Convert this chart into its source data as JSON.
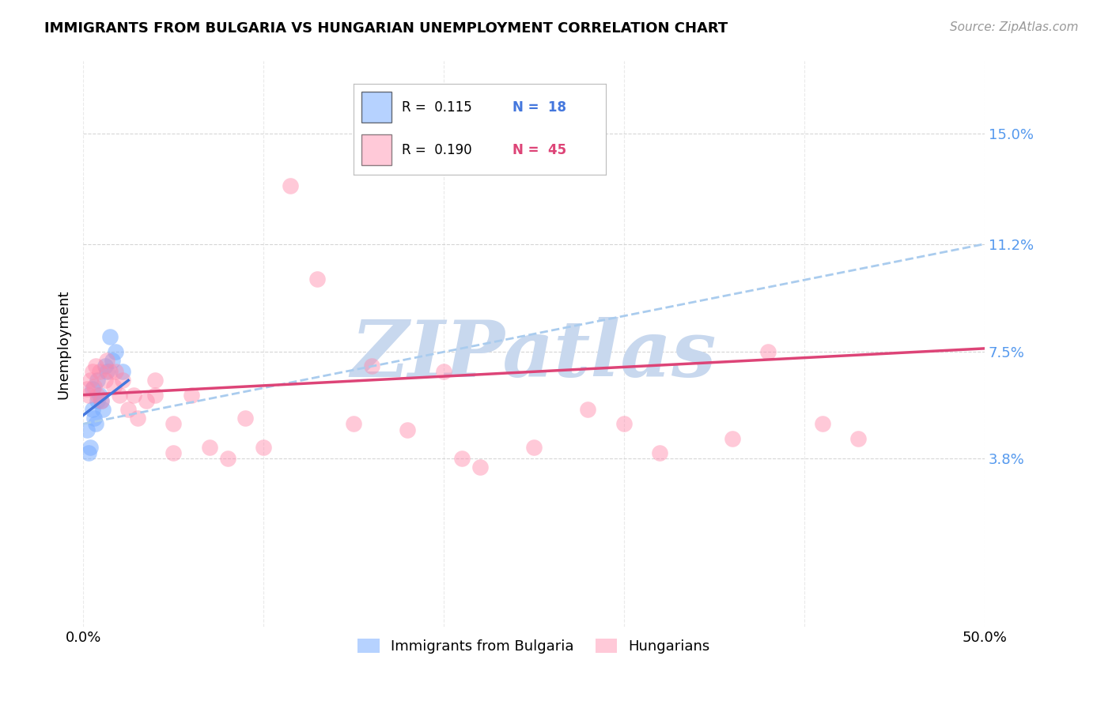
{
  "title": "IMMIGRANTS FROM BULGARIA VS HUNGARIAN UNEMPLOYMENT CORRELATION CHART",
  "source": "Source: ZipAtlas.com",
  "ylabel": "Unemployment",
  "xlim": [
    0.0,
    0.5
  ],
  "ylim": [
    -0.02,
    0.175
  ],
  "yticks": [
    0.038,
    0.075,
    0.112,
    0.15
  ],
  "ytick_labels": [
    "3.8%",
    "7.5%",
    "11.2%",
    "15.0%"
  ],
  "xticks": [
    0.0,
    0.1,
    0.2,
    0.3,
    0.4,
    0.5
  ],
  "xtick_labels": [
    "0.0%",
    "",
    "",
    "",
    "",
    "50.0%"
  ],
  "bg_color": "#ffffff",
  "grid_color": "#cccccc",
  "blue_color": "#7aadff",
  "pink_color": "#ff88aa",
  "blue_line_color": "#4477dd",
  "pink_line_color": "#dd4477",
  "dashed_line_color": "#aaccee",
  "watermark_text": "ZIPatlas",
  "watermark_color": "#c8d8ee",
  "blue_scatter_x": [
    0.002,
    0.003,
    0.004,
    0.005,
    0.005,
    0.006,
    0.007,
    0.008,
    0.008,
    0.009,
    0.01,
    0.011,
    0.012,
    0.013,
    0.015,
    0.016,
    0.018,
    0.022
  ],
  "blue_scatter_y": [
    0.048,
    0.04,
    0.042,
    0.055,
    0.062,
    0.052,
    0.05,
    0.058,
    0.065,
    0.06,
    0.058,
    0.055,
    0.07,
    0.068,
    0.08,
    0.072,
    0.075,
    0.068
  ],
  "pink_scatter_x": [
    0.002,
    0.003,
    0.004,
    0.005,
    0.006,
    0.007,
    0.008,
    0.009,
    0.01,
    0.012,
    0.013,
    0.015,
    0.017,
    0.018,
    0.02,
    0.022,
    0.025,
    0.028,
    0.03,
    0.035,
    0.04,
    0.04,
    0.05,
    0.05,
    0.06,
    0.07,
    0.08,
    0.09,
    0.1,
    0.115,
    0.13,
    0.15,
    0.16,
    0.18,
    0.2,
    0.21,
    0.22,
    0.25,
    0.28,
    0.3,
    0.32,
    0.36,
    0.38,
    0.41,
    0.43
  ],
  "pink_scatter_y": [
    0.062,
    0.06,
    0.065,
    0.068,
    0.063,
    0.07,
    0.06,
    0.068,
    0.058,
    0.065,
    0.072,
    0.068,
    0.063,
    0.068,
    0.06,
    0.065,
    0.055,
    0.06,
    0.052,
    0.058,
    0.06,
    0.065,
    0.04,
    0.05,
    0.06,
    0.042,
    0.038,
    0.052,
    0.042,
    0.132,
    0.1,
    0.05,
    0.07,
    0.048,
    0.068,
    0.038,
    0.035,
    0.042,
    0.055,
    0.05,
    0.04,
    0.045,
    0.075,
    0.05,
    0.045
  ],
  "pink_line_start_x": 0.0,
  "pink_line_start_y": 0.06,
  "pink_line_end_x": 0.5,
  "pink_line_end_y": 0.076,
  "blue_line_start_x": 0.0,
  "blue_line_start_y": 0.053,
  "blue_line_end_x": 0.025,
  "blue_line_end_y": 0.065,
  "dashed_line_start_x": 0.0,
  "dashed_line_start_y": 0.05,
  "dashed_line_end_x": 0.5,
  "dashed_line_end_y": 0.112
}
